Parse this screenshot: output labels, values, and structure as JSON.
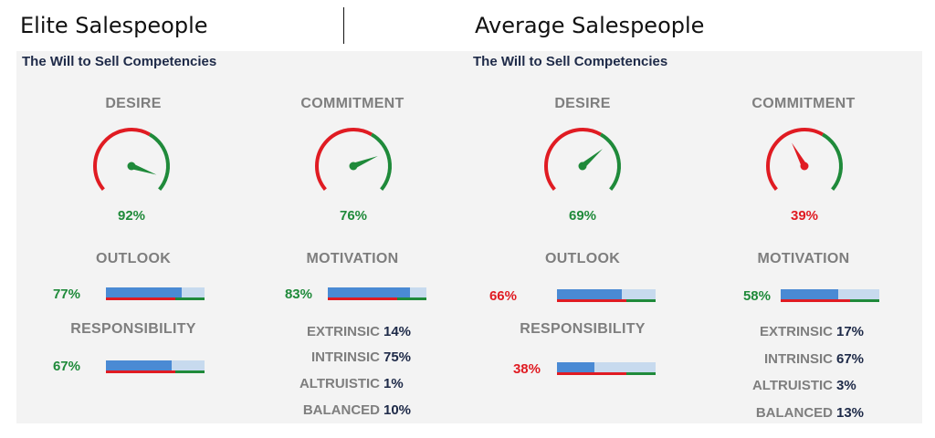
{
  "headings": {
    "left": "Elite Salespeople",
    "right": "Average Salespeople"
  },
  "colors": {
    "good": "#1f8a3a",
    "bad": "#e01b22",
    "bar": "#4a8ad4",
    "bar_bg": "#c7daee",
    "label": "#7e7e7e",
    "title": "#1e2a48"
  },
  "panels": [
    {
      "title": "The Will to Sell Competencies",
      "desire": {
        "label": "DESIRE",
        "value": "92%",
        "fraction": 0.92,
        "status": "good"
      },
      "commitment": {
        "label": "COMMITMENT",
        "value": "76%",
        "fraction": 0.76,
        "status": "good"
      },
      "outlook": {
        "label": "OUTLOOK",
        "value": "77%",
        "fraction": 0.77,
        "status": "good"
      },
      "motivation": {
        "label": "MOTIVATION",
        "value": "83%",
        "fraction": 0.83,
        "status": "good"
      },
      "responsibility": {
        "label": "RESPONSIBILITY",
        "value": "67%",
        "fraction": 0.67,
        "status": "good"
      },
      "motivation_breakdown": [
        {
          "label": "EXTRINSIC",
          "value": "14%"
        },
        {
          "label": "INTRINSIC",
          "value": "75%"
        },
        {
          "label": "ALTRUISTIC",
          "value": "1%"
        },
        {
          "label": "BALANCED",
          "value": "10%"
        }
      ]
    },
    {
      "title": "The Will to Sell Competencies",
      "desire": {
        "label": "DESIRE",
        "value": "69%",
        "fraction": 0.69,
        "status": "good"
      },
      "commitment": {
        "label": "COMMITMENT",
        "value": "39%",
        "fraction": 0.39,
        "status": "bad"
      },
      "outlook": {
        "label": "OUTLOOK",
        "value": "66%",
        "fraction": 0.66,
        "status": "bad"
      },
      "motivation": {
        "label": "MOTIVATION",
        "value": "58%",
        "fraction": 0.58,
        "status": "good"
      },
      "responsibility": {
        "label": "RESPONSIBILITY",
        "value": "38%",
        "fraction": 0.38,
        "status": "bad"
      },
      "motivation_breakdown": [
        {
          "label": "EXTRINSIC",
          "value": "17%"
        },
        {
          "label": "INTRINSIC",
          "value": "67%"
        },
        {
          "label": "ALTRUISTIC",
          "value": "3%"
        },
        {
          "label": "BALANCED",
          "value": "13%"
        }
      ]
    }
  ]
}
